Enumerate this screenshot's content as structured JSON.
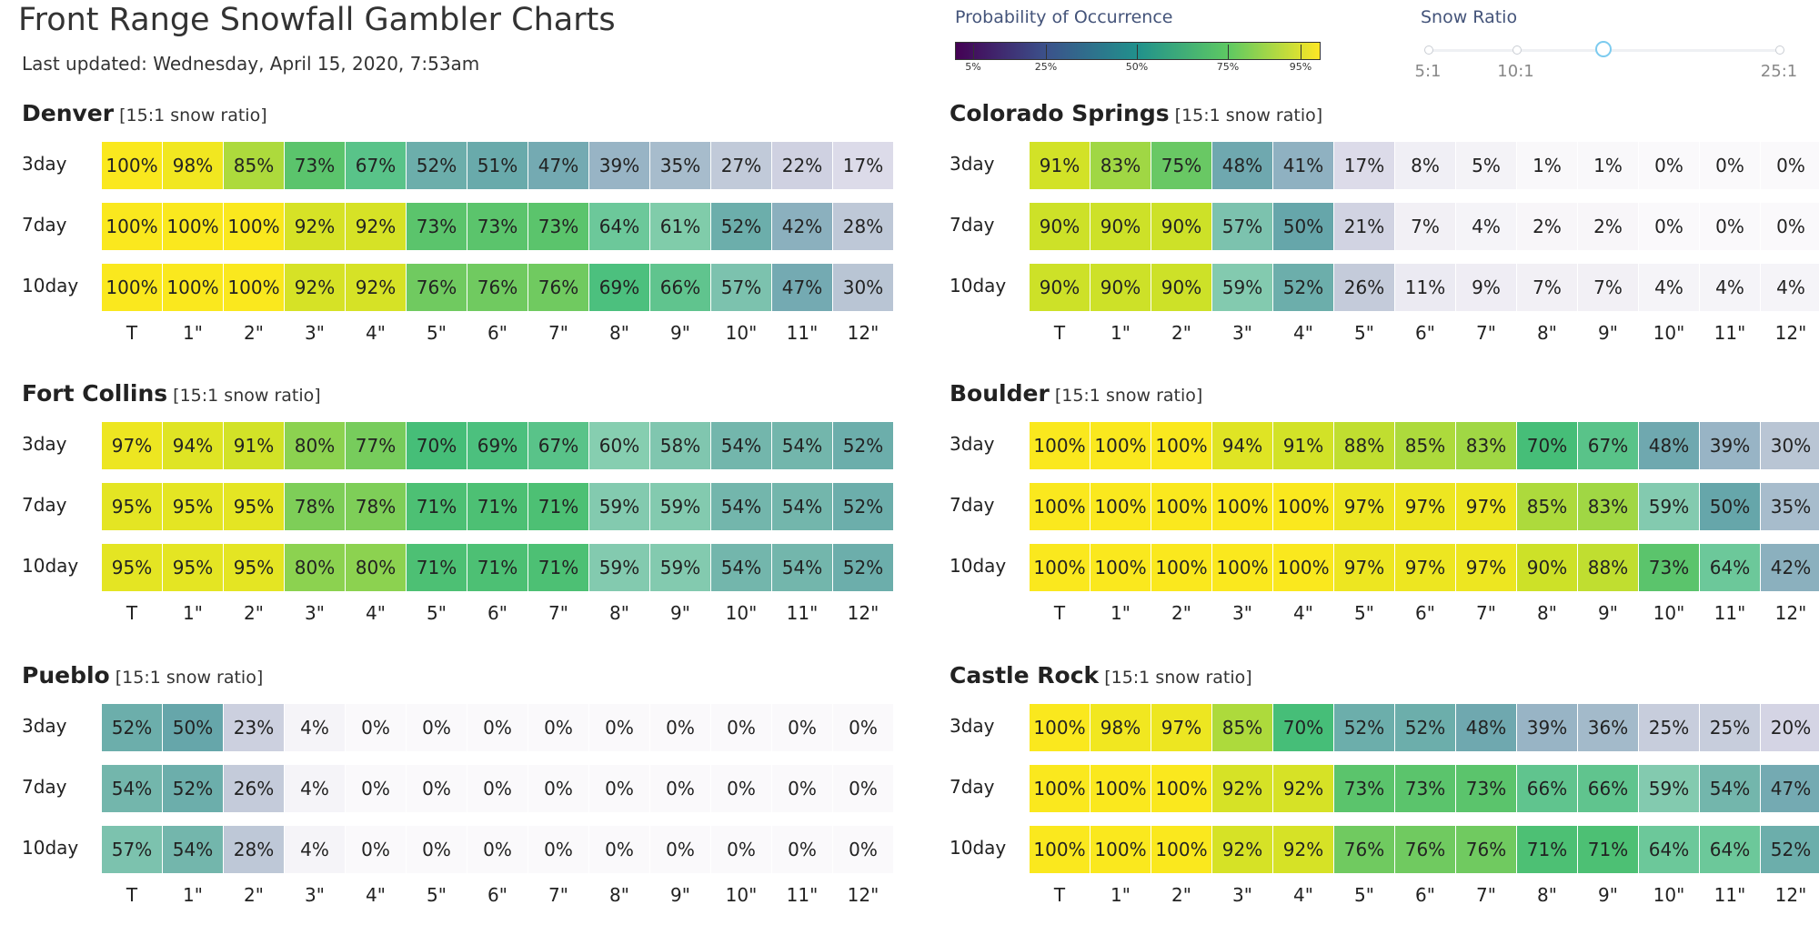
{
  "header": {
    "title": "Front Range Snowfall Gambler Charts",
    "last_updated": "Last updated: Wednesday, April 15, 2020, 7:53am"
  },
  "legend": {
    "title": "Probability of Occurrence",
    "ticks": [
      "5%",
      "25%",
      "50%",
      "75%",
      "95%"
    ],
    "tick_values": [
      5,
      25,
      50,
      75,
      95
    ],
    "colorscale": [
      "#440154",
      "#3b528b",
      "#21918c",
      "#5ec962",
      "#fde725"
    ]
  },
  "snow_ratio_slider": {
    "title": "Snow Ratio",
    "labels": [
      "5:1",
      "10:1",
      "25:1"
    ],
    "label_values": [
      5,
      10,
      25
    ],
    "selected": 15,
    "min": 5,
    "max": 25
  },
  "chart_data": [
    {
      "type": "heatmap",
      "city": "Denver",
      "subtitle": "[15:1 snow ratio]",
      "columns": [
        "T",
        "1\"",
        "2\"",
        "3\"",
        "4\"",
        "5\"",
        "6\"",
        "7\"",
        "8\"",
        "9\"",
        "10\"",
        "11\"",
        "12\""
      ],
      "rows": [
        "3day",
        "7day",
        "10day"
      ],
      "values": [
        [
          100,
          98,
          85,
          73,
          67,
          52,
          51,
          47,
          39,
          35,
          27,
          22,
          17
        ],
        [
          100,
          100,
          100,
          92,
          92,
          73,
          73,
          73,
          64,
          61,
          52,
          42,
          28
        ],
        [
          100,
          100,
          100,
          92,
          92,
          76,
          76,
          76,
          69,
          66,
          57,
          47,
          30
        ]
      ]
    },
    {
      "type": "heatmap",
      "city": "Colorado Springs",
      "subtitle": "[15:1 snow ratio]",
      "columns": [
        "T",
        "1\"",
        "2\"",
        "3\"",
        "4\"",
        "5\"",
        "6\"",
        "7\"",
        "8\"",
        "9\"",
        "10\"",
        "11\"",
        "12\""
      ],
      "rows": [
        "3day",
        "7day",
        "10day"
      ],
      "values": [
        [
          91,
          83,
          75,
          48,
          41,
          17,
          8,
          5,
          1,
          1,
          0,
          0,
          0
        ],
        [
          90,
          90,
          90,
          57,
          50,
          21,
          7,
          4,
          2,
          2,
          0,
          0,
          0
        ],
        [
          90,
          90,
          90,
          59,
          52,
          26,
          11,
          9,
          7,
          7,
          4,
          4,
          4
        ]
      ]
    },
    {
      "type": "heatmap",
      "city": "Fort Collins",
      "subtitle": "[15:1 snow ratio]",
      "columns": [
        "T",
        "1\"",
        "2\"",
        "3\"",
        "4\"",
        "5\"",
        "6\"",
        "7\"",
        "8\"",
        "9\"",
        "10\"",
        "11\"",
        "12\""
      ],
      "rows": [
        "3day",
        "7day",
        "10day"
      ],
      "values": [
        [
          97,
          94,
          91,
          80,
          77,
          70,
          69,
          67,
          60,
          58,
          54,
          54,
          52
        ],
        [
          95,
          95,
          95,
          78,
          78,
          71,
          71,
          71,
          59,
          59,
          54,
          54,
          52
        ],
        [
          95,
          95,
          95,
          80,
          80,
          71,
          71,
          71,
          59,
          59,
          54,
          54,
          52
        ]
      ]
    },
    {
      "type": "heatmap",
      "city": "Boulder",
      "subtitle": "[15:1 snow ratio]",
      "columns": [
        "T",
        "1\"",
        "2\"",
        "3\"",
        "4\"",
        "5\"",
        "6\"",
        "7\"",
        "8\"",
        "9\"",
        "10\"",
        "11\"",
        "12\""
      ],
      "rows": [
        "3day",
        "7day",
        "10day"
      ],
      "values": [
        [
          100,
          100,
          100,
          94,
          91,
          88,
          85,
          83,
          70,
          67,
          48,
          39,
          30
        ],
        [
          100,
          100,
          100,
          100,
          100,
          97,
          97,
          97,
          85,
          83,
          59,
          50,
          35
        ],
        [
          100,
          100,
          100,
          100,
          100,
          97,
          97,
          97,
          90,
          88,
          73,
          64,
          42
        ]
      ]
    },
    {
      "type": "heatmap",
      "city": "Pueblo",
      "subtitle": "[15:1 snow ratio]",
      "columns": [
        "T",
        "1\"",
        "2\"",
        "3\"",
        "4\"",
        "5\"",
        "6\"",
        "7\"",
        "8\"",
        "9\"",
        "10\"",
        "11\"",
        "12\""
      ],
      "rows": [
        "3day",
        "7day",
        "10day"
      ],
      "values": [
        [
          52,
          50,
          23,
          4,
          0,
          0,
          0,
          0,
          0,
          0,
          0,
          0,
          0
        ],
        [
          54,
          52,
          26,
          4,
          0,
          0,
          0,
          0,
          0,
          0,
          0,
          0,
          0
        ],
        [
          57,
          54,
          28,
          4,
          0,
          0,
          0,
          0,
          0,
          0,
          0,
          0,
          0
        ]
      ]
    },
    {
      "type": "heatmap",
      "city": "Castle Rock",
      "subtitle": "[15:1 snow ratio]",
      "columns": [
        "T",
        "1\"",
        "2\"",
        "3\"",
        "4\"",
        "5\"",
        "6\"",
        "7\"",
        "8\"",
        "9\"",
        "10\"",
        "11\"",
        "12\""
      ],
      "rows": [
        "3day",
        "7day",
        "10day"
      ],
      "values": [
        [
          100,
          98,
          97,
          85,
          70,
          52,
          52,
          48,
          39,
          36,
          25,
          25,
          20
        ],
        [
          100,
          100,
          100,
          92,
          92,
          73,
          73,
          73,
          66,
          66,
          59,
          54,
          47
        ],
        [
          100,
          100,
          100,
          92,
          92,
          76,
          76,
          76,
          71,
          71,
          64,
          64,
          52
        ]
      ]
    }
  ]
}
